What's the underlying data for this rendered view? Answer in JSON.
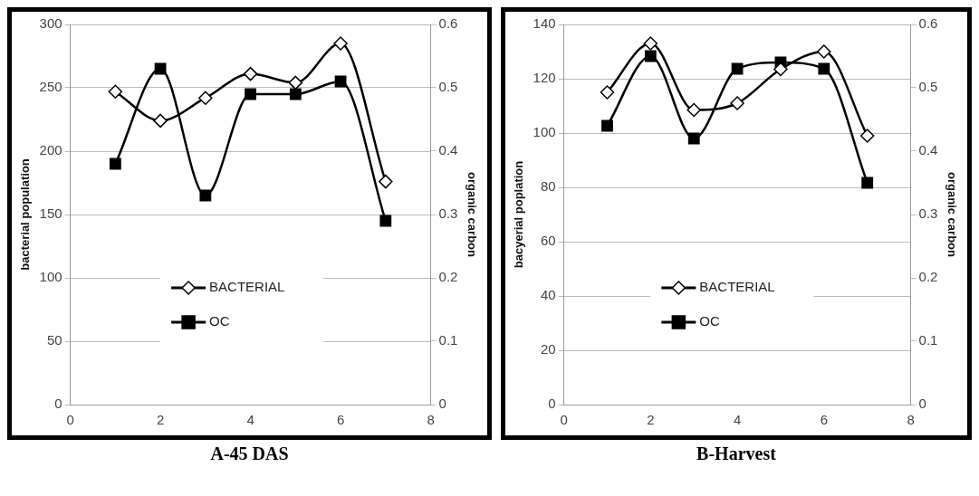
{
  "chart_data": [
    {
      "type": "line",
      "title": "A-45 DAS",
      "ylabel": "bacterial population",
      "y2label": "organic carbon",
      "xlim": [
        0,
        8
      ],
      "xticks": [
        0,
        2,
        4,
        6,
        8
      ],
      "ylim": [
        0,
        300
      ],
      "yticks": [
        0,
        50,
        100,
        150,
        200,
        250,
        300
      ],
      "y2lim": [
        0,
        0.6
      ],
      "y2ticks": [
        0,
        0.1,
        0.2,
        0.3,
        0.4,
        0.5,
        0.6
      ],
      "grid": "y",
      "legend": "bottom",
      "x": [
        1,
        2,
        3,
        4,
        5,
        6,
        7
      ],
      "series": [
        {
          "name": "BACTERIAL",
          "color": "#000000",
          "marker": "diamond",
          "values": [
            247,
            224,
            242,
            261,
            254,
            285,
            176
          ]
        },
        {
          "name": "OC",
          "color": "#000000",
          "marker": "square",
          "axis": "y2",
          "values": [
            0.38,
            0.53,
            0.33,
            0.49,
            0.49,
            0.51,
            0.29
          ]
        }
      ]
    },
    {
      "type": "line",
      "title": "B-Harvest",
      "ylabel": "bacyerial poplation",
      "y2label": "organic carbon",
      "xlim": [
        0,
        8
      ],
      "xticks": [
        0,
        2,
        4,
        6,
        8
      ],
      "ylim": [
        0,
        140
      ],
      "yticks": [
        0,
        20,
        40,
        60,
        80,
        100,
        120,
        140
      ],
      "y2lim": [
        0,
        0.6
      ],
      "y2ticks": [
        0,
        0.1,
        0.2,
        0.3,
        0.4,
        0.5,
        0.6
      ],
      "grid": "y",
      "legend": "bottom",
      "x": [
        1,
        2,
        3,
        4,
        5,
        6,
        7
      ],
      "series": [
        {
          "name": "BACTERIAL",
          "color": "#000000",
          "marker": "diamond",
          "values": [
            115,
            133,
            108.5,
            111,
            123.5,
            130,
            99
          ]
        },
        {
          "name": "OC",
          "color": "#000000",
          "marker": "square",
          "axis": "y2",
          "values": [
            0.44,
            0.55,
            0.42,
            0.53,
            0.54,
            0.53,
            0.35
          ]
        }
      ]
    }
  ]
}
